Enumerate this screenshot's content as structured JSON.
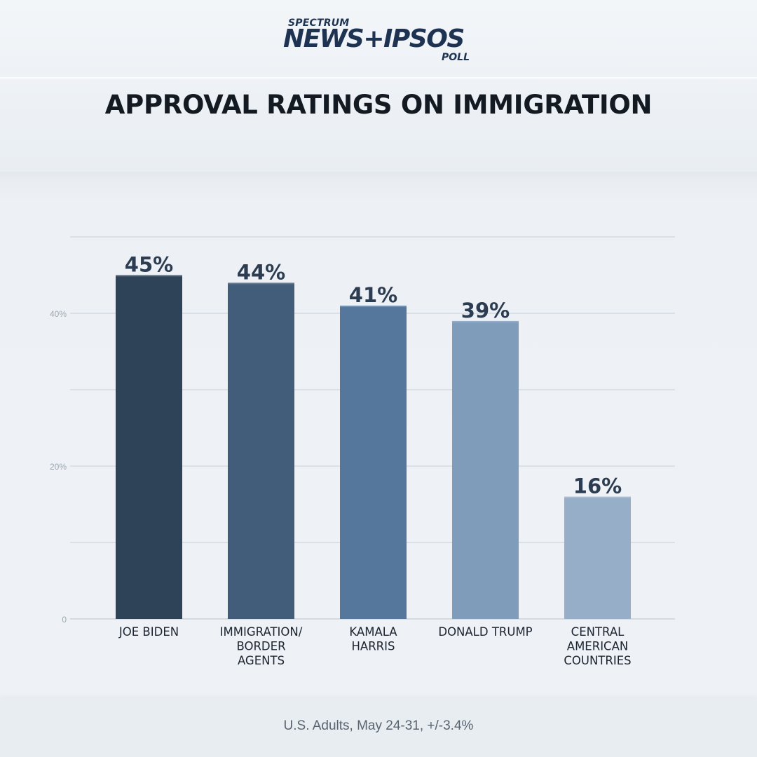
{
  "logo": {
    "top": "SPECTRUM",
    "main": "NEWS+IPSOS",
    "sub": "POLL"
  },
  "chart_data": {
    "type": "bar",
    "title": "APPROVAL RATINGS ON IMMIGRATION",
    "categories": [
      [
        "JOE BIDEN"
      ],
      [
        "IMMIGRATION/",
        "BORDER",
        "AGENTS"
      ],
      [
        "KAMALA",
        "HARRIS"
      ],
      [
        "DONALD TRUMP"
      ],
      [
        "CENTRAL",
        "AMERICAN",
        "COUNTRIES"
      ]
    ],
    "values": [
      45,
      44,
      41,
      39,
      16
    ],
    "value_labels": [
      "45%",
      "44%",
      "41%",
      "39%",
      "16%"
    ],
    "bar_colors": [
      "#2f4358",
      "#415d7a",
      "#54779b",
      "#7f9cbb",
      "#97aec8"
    ],
    "y_ticks": [
      {
        "value": 0,
        "label": "0"
      },
      {
        "value": 10,
        "label": ""
      },
      {
        "value": 20,
        "label": "20%"
      },
      {
        "value": 30,
        "label": ""
      },
      {
        "value": 40,
        "label": "40%"
      },
      {
        "value": 50,
        "label": ""
      }
    ],
    "ylim": [
      0,
      50
    ],
    "grid": true,
    "xlabel": "",
    "ylabel": ""
  },
  "footer": "U.S. Adults, May 24-31, +/-3.4%"
}
